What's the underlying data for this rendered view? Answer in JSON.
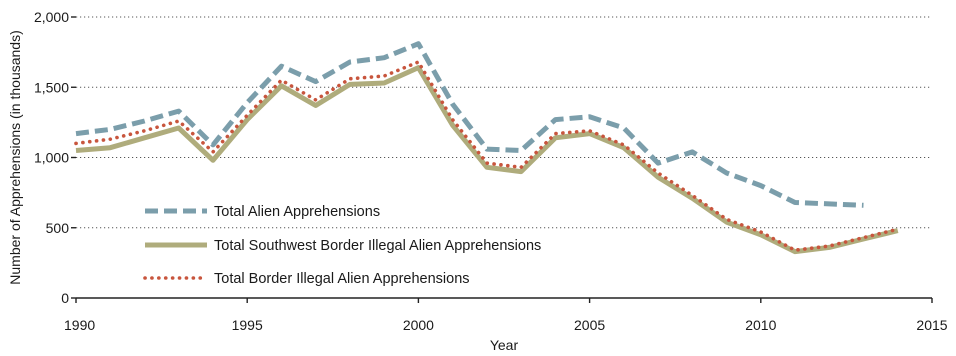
{
  "chart_data": {
    "type": "line",
    "xlabel": "Year",
    "ylabel": "Number of Apprehensions (in thousands)",
    "xlim": [
      1990,
      2015
    ],
    "ylim": [
      0,
      2000
    ],
    "x_ticks": [
      "1990",
      "1995",
      "2000",
      "2005",
      "2010",
      "2015"
    ],
    "y_ticks": [
      "0",
      "500",
      "1,000",
      "1,500",
      "2,000"
    ],
    "grid": "dotted horizontal",
    "legend_position": "lower-left",
    "series": [
      {
        "name": "Total Alien Apprehensions",
        "color": "#7b9eab",
        "style": "dashed",
        "x": [
          1990,
          1991,
          1992,
          1993,
          1994,
          1995,
          1996,
          1997,
          1998,
          1999,
          2000,
          2001,
          2002,
          2003,
          2004,
          2005,
          2006,
          2007,
          2008,
          2009,
          2010,
          2011,
          2012,
          2013
        ],
        "y": [
          1170,
          1200,
          1260,
          1330,
          1090,
          1390,
          1650,
          1540,
          1680,
          1710,
          1810,
          1380,
          1060,
          1050,
          1270,
          1290,
          1210,
          960,
          1040,
          890,
          800,
          680,
          670,
          660
        ]
      },
      {
        "name": "Total Southwest Border Illegal Alien Apprehensions",
        "color": "#afac7c",
        "style": "solid",
        "x": [
          1990,
          1991,
          1992,
          1993,
          1994,
          1995,
          1996,
          1997,
          1998,
          1999,
          2000,
          2001,
          2002,
          2003,
          2004,
          2005,
          2006,
          2007,
          2008,
          2009,
          2010,
          2011,
          2012,
          2013,
          2014
        ],
        "y": [
          1050,
          1070,
          1140,
          1210,
          980,
          1270,
          1510,
          1370,
          1520,
          1530,
          1640,
          1230,
          930,
          900,
          1140,
          1170,
          1070,
          860,
          710,
          540,
          450,
          330,
          360,
          420,
          480
        ]
      },
      {
        "name": "Total Border Illegal Alien Apprehensions",
        "color": "#c8553d",
        "style": "dotted",
        "x": [
          1990,
          1991,
          1992,
          1993,
          1994,
          1995,
          1996,
          1997,
          1998,
          1999,
          2000,
          2001,
          2002,
          2003,
          2004,
          2005,
          2006,
          2007,
          2008,
          2009,
          2010,
          2011,
          2012,
          2013,
          2014
        ],
        "y": [
          1100,
          1130,
          1190,
          1260,
          1040,
          1300,
          1550,
          1410,
          1560,
          1580,
          1680,
          1270,
          960,
          930,
          1170,
          1190,
          1090,
          890,
          730,
          560,
          470,
          340,
          370,
          430,
          490
        ]
      }
    ]
  }
}
